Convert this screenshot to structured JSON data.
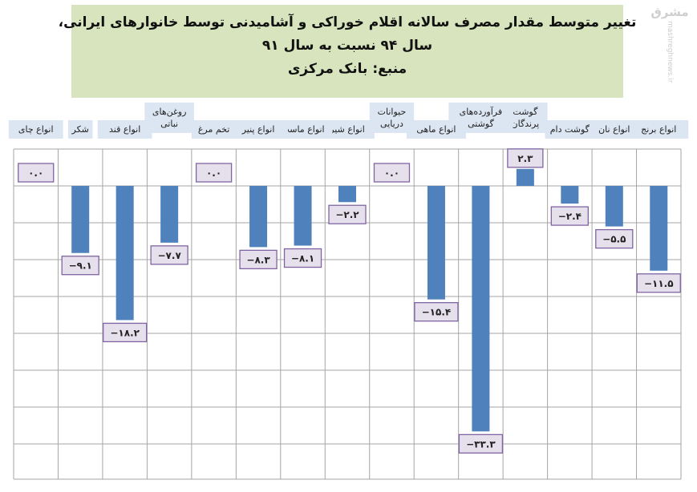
{
  "header": {
    "title_line1": "تغییر متوسط مقدار مصرف سالانه  اقلام خوراکی و آشامیدنی توسط خانوارهای ایرانی،",
    "title_line2": "سال ۹۴ نسبت به سال ۹۱",
    "source_line": "منبع: بانک مرکزی"
  },
  "watermark": {
    "logo_text": "مشرق",
    "url_text": "mashreghnews.ir"
  },
  "colors": {
    "bar": "#4f81bd",
    "label_bg": "#e6e0ec",
    "label_border": "#8064a2",
    "category_bg": "#dce6f2",
    "title_bg": "#d7e4bd",
    "grid": "#a6a6a6"
  },
  "chart_data": {
    "type": "bar",
    "title": "تغییر متوسط مقدار مصرف سالانه  اقلام خوراکی و آشامیدنی توسط خانوارهای ایرانی، سال ۹۴ نسبت به سال ۹۱",
    "subtitle": "منبع: بانک مرکزی",
    "xlabel": "",
    "ylabel": "",
    "ylim": [
      -35,
      5
    ],
    "grid": true,
    "legend": "none",
    "categories": [
      [
        "انواع برنج"
      ],
      [
        "انواع نان"
      ],
      [
        "گوشت دام"
      ],
      [
        "گوشت",
        "پرندگان"
      ],
      [
        "فرآورده‌های",
        "گوشتی"
      ],
      [
        "انواع ماهی"
      ],
      [
        "حیوانات",
        "دریایی"
      ],
      [
        "انواع شیر"
      ],
      [
        "انواع ماست"
      ],
      [
        "انواع پنیر"
      ],
      [
        "تخم مرغ"
      ],
      [
        "روغن‌های",
        "نباتی"
      ],
      [
        "انواع قند"
      ],
      [
        "شکر"
      ],
      [
        "انواع چای"
      ]
    ],
    "values": [
      -11.5,
      -5.5,
      -2.4,
      2.3,
      -33.3,
      -15.4,
      0.0,
      -2.2,
      -8.1,
      -8.3,
      0.0,
      -7.7,
      -18.2,
      -9.1,
      0.0
    ],
    "value_labels": [
      "−۱۱.۵",
      "−۵.۵",
      "−۲.۴",
      "۲.۳",
      "−۳۳.۳",
      "−۱۵.۴",
      "۰.۰",
      "−۲.۲",
      "−۸.۱",
      "−۸.۳",
      "۰.۰",
      "−۷.۷",
      "−۱۸.۲",
      "−۹.۱",
      "۰.۰"
    ]
  }
}
